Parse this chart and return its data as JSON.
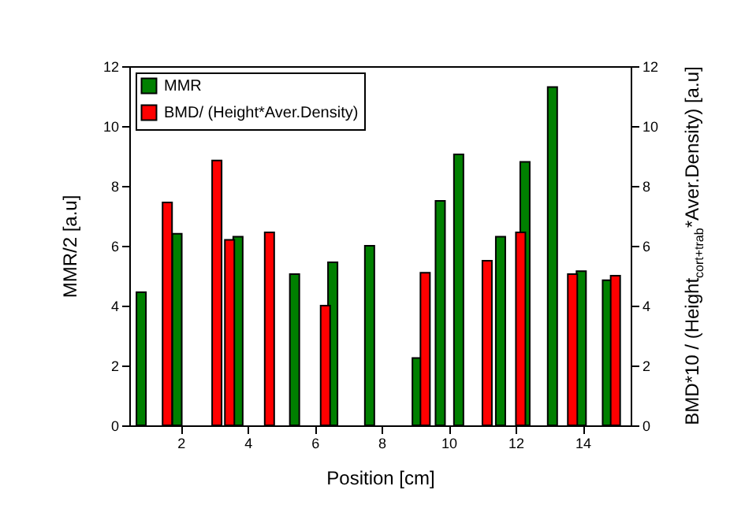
{
  "chart_data": {
    "type": "bar",
    "xlabel": "Position [cm]",
    "ylabel": "MMR/2 [a.u]",
    "y2label": "BMD*10 / (Height$_{cort+trab}$*Aver.Density) [a.u]",
    "xlim": [
      0.7,
      15.2
    ],
    "xticks": [
      2,
      4,
      6,
      8,
      10,
      12,
      14
    ],
    "ylim": [
      0,
      12
    ],
    "yticks": [
      0,
      2,
      4,
      6,
      8,
      10,
      12
    ],
    "y2lim": [
      0,
      12
    ],
    "y2ticks": [
      0,
      2,
      4,
      6,
      8,
      10,
      12
    ],
    "legend": "top left",
    "grid": false,
    "series": [
      {
        "name": "MMR",
        "color": "#008000",
        "x": [
          0.82,
          1.89,
          3.71,
          5.4,
          6.54,
          7.64,
          9.06,
          9.75,
          10.3,
          11.55,
          12.28,
          13.1,
          13.96,
          14.74
        ],
        "values": [
          4.45,
          6.4,
          6.3,
          5.05,
          5.45,
          6.0,
          2.25,
          7.5,
          9.05,
          6.3,
          8.8,
          11.3,
          5.15,
          4.85
        ]
      },
      {
        "name": "BMD/ (Height*Aver.Density)",
        "color": "#ff0000",
        "axis": "y2",
        "x": [
          1.6,
          3.08,
          3.46,
          4.65,
          6.32,
          9.3,
          11.15,
          12.15,
          13.7,
          14.98
        ],
        "values": [
          7.45,
          8.85,
          6.2,
          6.45,
          4.0,
          5.1,
          5.5,
          6.45,
          5.05,
          5.0
        ]
      }
    ]
  }
}
